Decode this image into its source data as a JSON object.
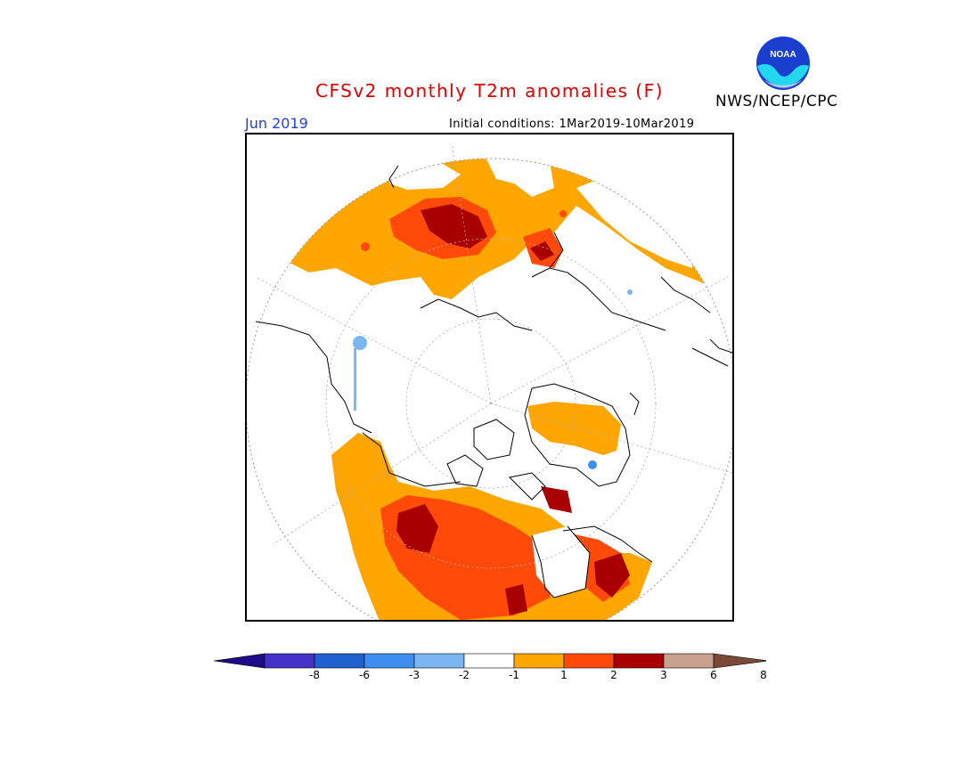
{
  "header": {
    "title": "CFSv2 monthly T2m anomalies (F)",
    "valid_month": "Jun 2019",
    "initial_conditions": "Initial conditions: 1Mar2019-10Mar2019",
    "organization": "NWS/NCEP/CPC",
    "logo_text": "NOAA"
  },
  "legend": {
    "colors": [
      "#1e0b8a",
      "#4433c6",
      "#1f62cf",
      "#3f8ff0",
      "#7ab6f2",
      "#ffffff",
      "#ffa600",
      "#ff4a0a",
      "#a80000",
      "#c8a08e",
      "#7a4a36"
    ],
    "ticks": [
      "-8",
      "-6",
      "-3",
      "-2",
      "-1",
      "1",
      "2",
      "3",
      "6",
      "8"
    ]
  },
  "map": {
    "projection": "north-polar-stereographic",
    "anomaly_colors": {
      "weak_warm": "#ffa600",
      "warm": "#ff4a0a",
      "strong_warm": "#a80000",
      "very_strong_warm": "#c8a08e",
      "weak_cool": "#7ab6f2",
      "cool": "#3f8ff0"
    }
  }
}
